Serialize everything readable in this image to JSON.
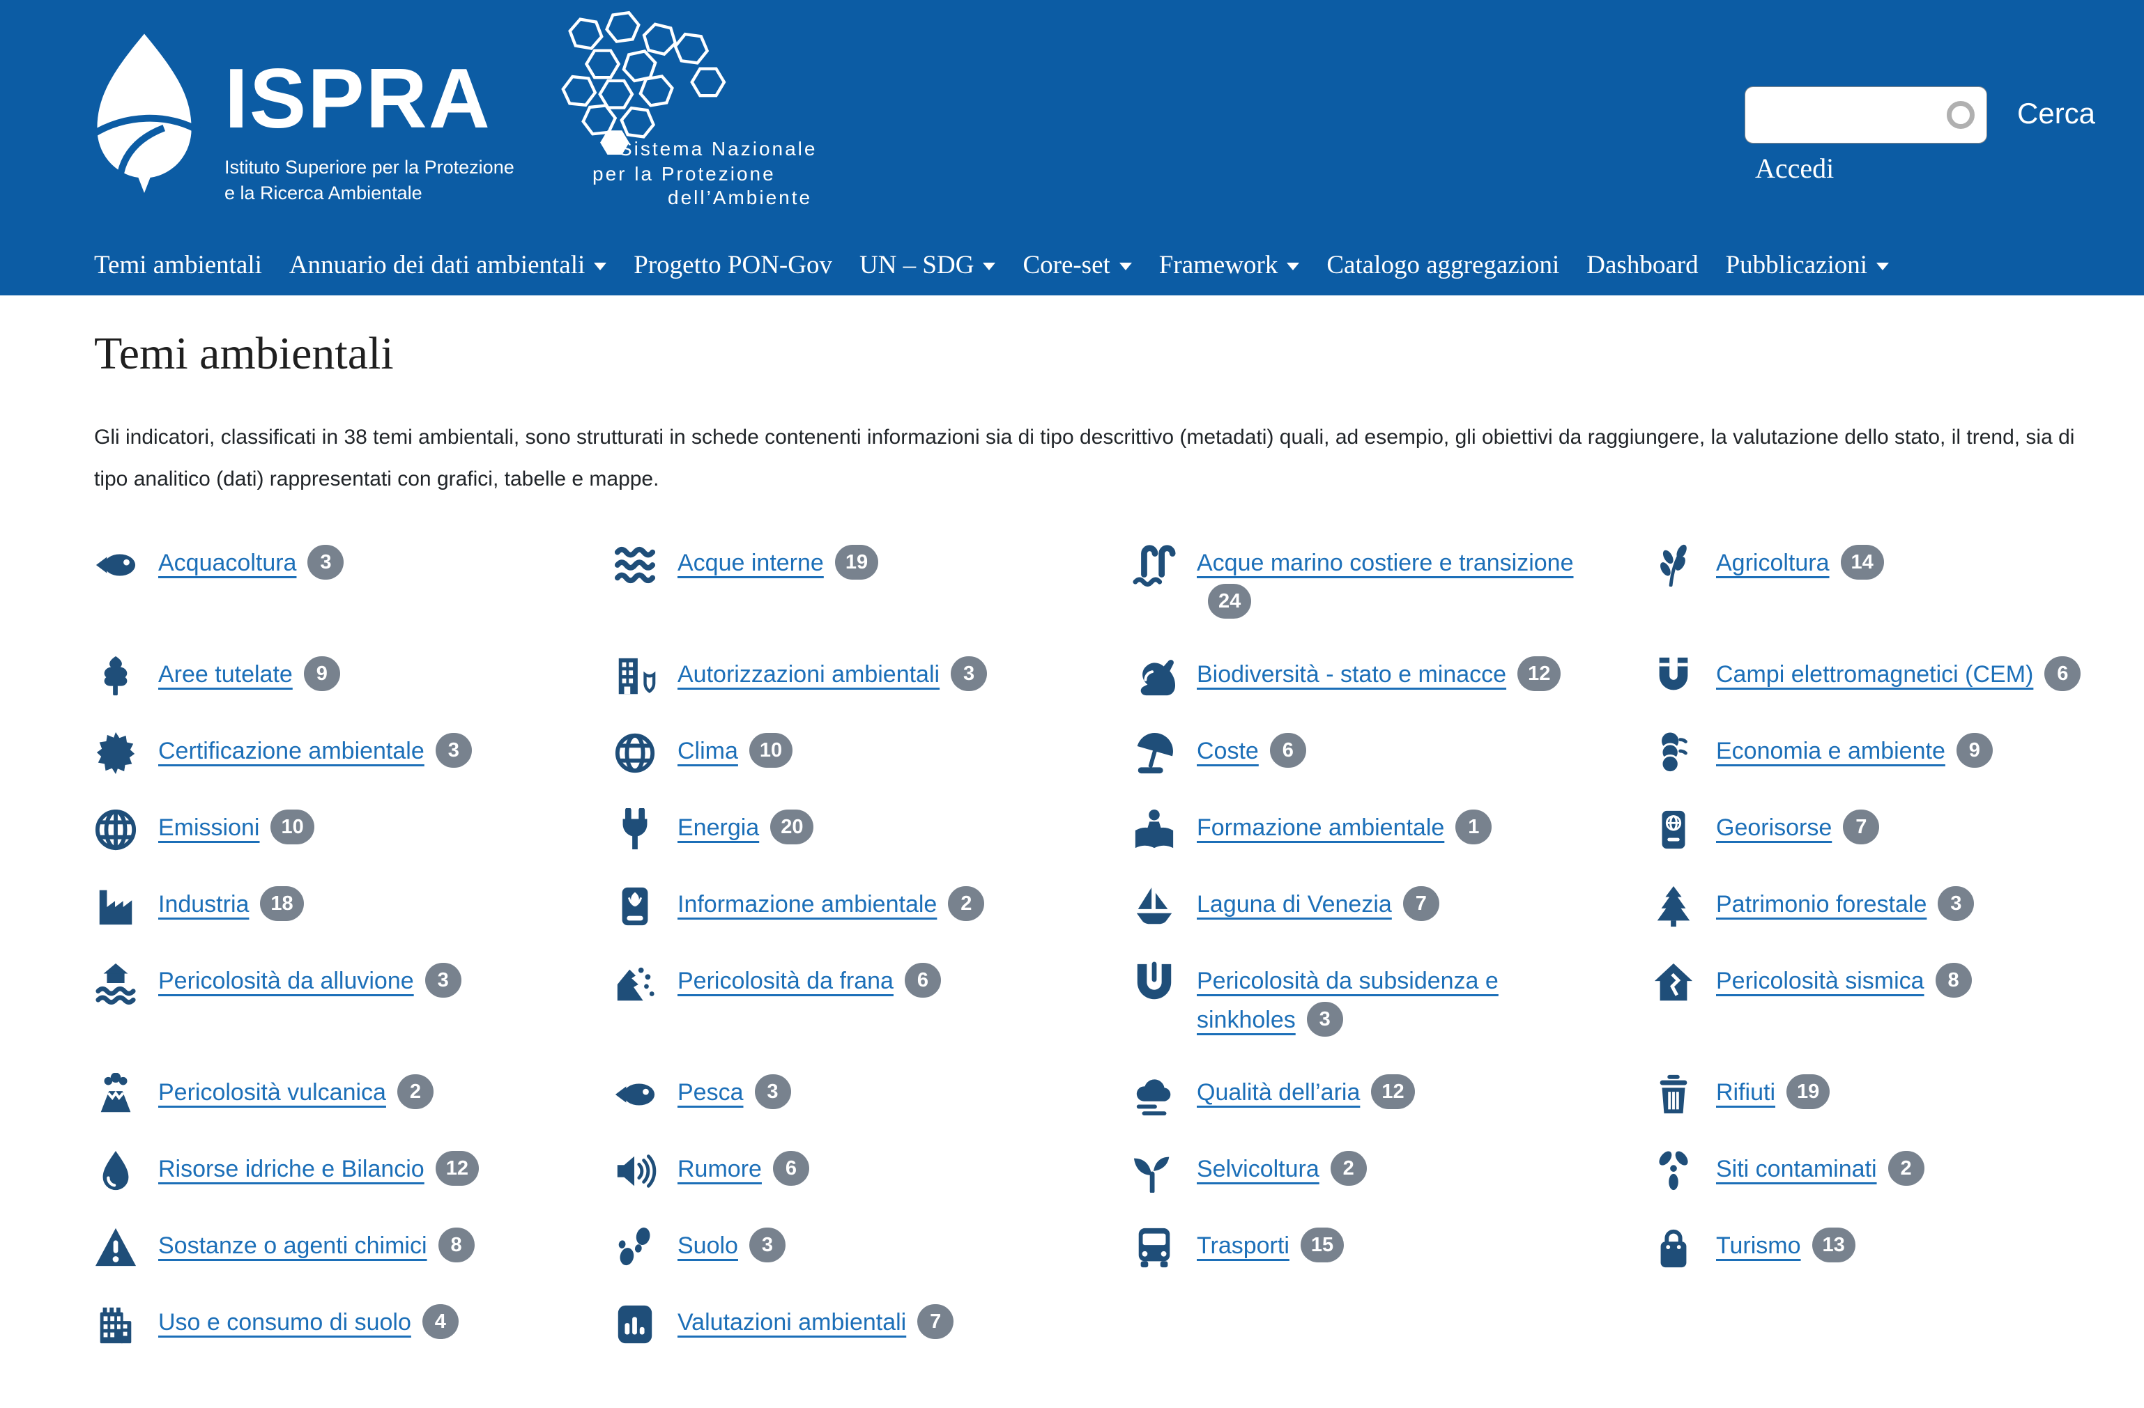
{
  "colors": {
    "header_bg": "#0c5ca4",
    "icon_navy": "#1f4e79",
    "link_blue": "#1c6fb8",
    "badge_gray": "#78828e"
  },
  "header": {
    "logo": {
      "title": "ISPRA",
      "subtitle_line1": "Istituto Superiore per la Protezione",
      "subtitle_line2": "e la Ricerca Ambientale"
    },
    "snpa": {
      "line1": "Sistema Nazionale",
      "line2": "per la Protezione",
      "line3": "dell’Ambiente"
    },
    "search": {
      "input_value": "",
      "button_label": "Cerca",
      "login_label": "Accedi"
    },
    "nav": [
      {
        "label": "Temi ambientali",
        "dropdown": false
      },
      {
        "label": "Annuario dei dati ambientali",
        "dropdown": true
      },
      {
        "label": "Progetto PON-Gov",
        "dropdown": false
      },
      {
        "label": "UN – SDG",
        "dropdown": true
      },
      {
        "label": "Core-set",
        "dropdown": true
      },
      {
        "label": "Framework",
        "dropdown": true
      },
      {
        "label": "Catalogo aggregazioni",
        "dropdown": false
      },
      {
        "label": "Dashboard",
        "dropdown": false
      },
      {
        "label": "Pubblicazioni",
        "dropdown": true
      }
    ]
  },
  "main": {
    "title": "Temi ambientali",
    "intro": "Gli indicatori, classificati in 38 temi ambientali, sono strutturati in schede contenenti informazioni sia di tipo descrittivo (metadati) quali, ad esempio, gli obiettivi da raggiungere, la valutazione dello stato, il trend, sia di tipo analitico (dati) rappresentati con grafici, tabelle e mappe.",
    "topics": [
      {
        "label": "Acquacoltura",
        "count": 3,
        "icon": "fish-icon"
      },
      {
        "label": "Acque interne",
        "count": 19,
        "icon": "waves-icon"
      },
      {
        "label": "Acque marino costiere e transizione",
        "count": 24,
        "icon": "pool-ladder-icon"
      },
      {
        "label": "Agricoltura",
        "count": 14,
        "icon": "wheat-icon"
      },
      {
        "label": "Aree tutelate",
        "count": 9,
        "icon": "tree-icon"
      },
      {
        "label": "Autorizzazioni ambientali",
        "count": 3,
        "icon": "building-shield-icon"
      },
      {
        "label": "Biodiversità - stato e minacce",
        "count": 12,
        "icon": "rabbit-icon"
      },
      {
        "label": "Campi elettromagnetici (CEM)",
        "count": 6,
        "icon": "magnet-icon"
      },
      {
        "label": "Certificazione ambientale",
        "count": 3,
        "icon": "rosette-icon"
      },
      {
        "label": "Clima",
        "count": 10,
        "icon": "globe-icon"
      },
      {
        "label": "Coste",
        "count": 6,
        "icon": "beach-umbrella-icon"
      },
      {
        "label": "Economia e ambiente",
        "count": 9,
        "icon": "coins-icon"
      },
      {
        "label": "Emissioni",
        "count": 10,
        "icon": "globe-grid-icon"
      },
      {
        "label": "Energia",
        "count": 20,
        "icon": "plug-icon"
      },
      {
        "label": "Formazione ambientale",
        "count": 1,
        "icon": "reader-icon"
      },
      {
        "label": "Georisorse",
        "count": 7,
        "icon": "field-guide-icon"
      },
      {
        "label": "Industria",
        "count": 18,
        "icon": "factory-icon"
      },
      {
        "label": "Informazione ambientale",
        "count": 2,
        "icon": "book-plant-icon"
      },
      {
        "label": "Laguna di Venezia",
        "count": 7,
        "icon": "sailboat-icon"
      },
      {
        "label": "Patrimonio forestale",
        "count": 3,
        "icon": "pine-tree-icon"
      },
      {
        "label": "Pericolosità da alluvione",
        "count": 3,
        "icon": "flood-icon"
      },
      {
        "label": "Pericolosità da frana",
        "count": 6,
        "icon": "landslide-icon"
      },
      {
        "label": "Pericolosità da subsidenza e sinkholes",
        "count": 3,
        "icon": "sinkhole-icon"
      },
      {
        "label": "Pericolosità sismica",
        "count": 8,
        "icon": "house-crack-icon"
      },
      {
        "label": "Pericolosità vulcanica",
        "count": 2,
        "icon": "volcano-icon"
      },
      {
        "label": "Pesca",
        "count": 3,
        "icon": "fish-icon"
      },
      {
        "label": "Qualità dell’aria",
        "count": 12,
        "icon": "cloud-icon"
      },
      {
        "label": "Rifiuti",
        "count": 19,
        "icon": "trash-icon"
      },
      {
        "label": "Risorse idriche e Bilancio",
        "count": 12,
        "icon": "water-drop-icon"
      },
      {
        "label": "Rumore",
        "count": 6,
        "icon": "speaker-icon"
      },
      {
        "label": "Selvicoltura",
        "count": 2,
        "icon": "seedling-icon"
      },
      {
        "label": "Siti contaminati",
        "count": 2,
        "icon": "radiation-icon"
      },
      {
        "label": "Sostanze o agenti chimici",
        "count": 8,
        "icon": "warning-icon"
      },
      {
        "label": "Suolo",
        "count": 3,
        "icon": "footprints-icon"
      },
      {
        "label": "Trasporti",
        "count": 15,
        "icon": "bus-icon"
      },
      {
        "label": "Turismo",
        "count": 13,
        "icon": "bag-icon"
      },
      {
        "label": "Uso e consumo di suolo",
        "count": 4,
        "icon": "city-icon"
      },
      {
        "label": "Valutazioni ambientali",
        "count": 7,
        "icon": "bar-chart-icon"
      }
    ]
  }
}
